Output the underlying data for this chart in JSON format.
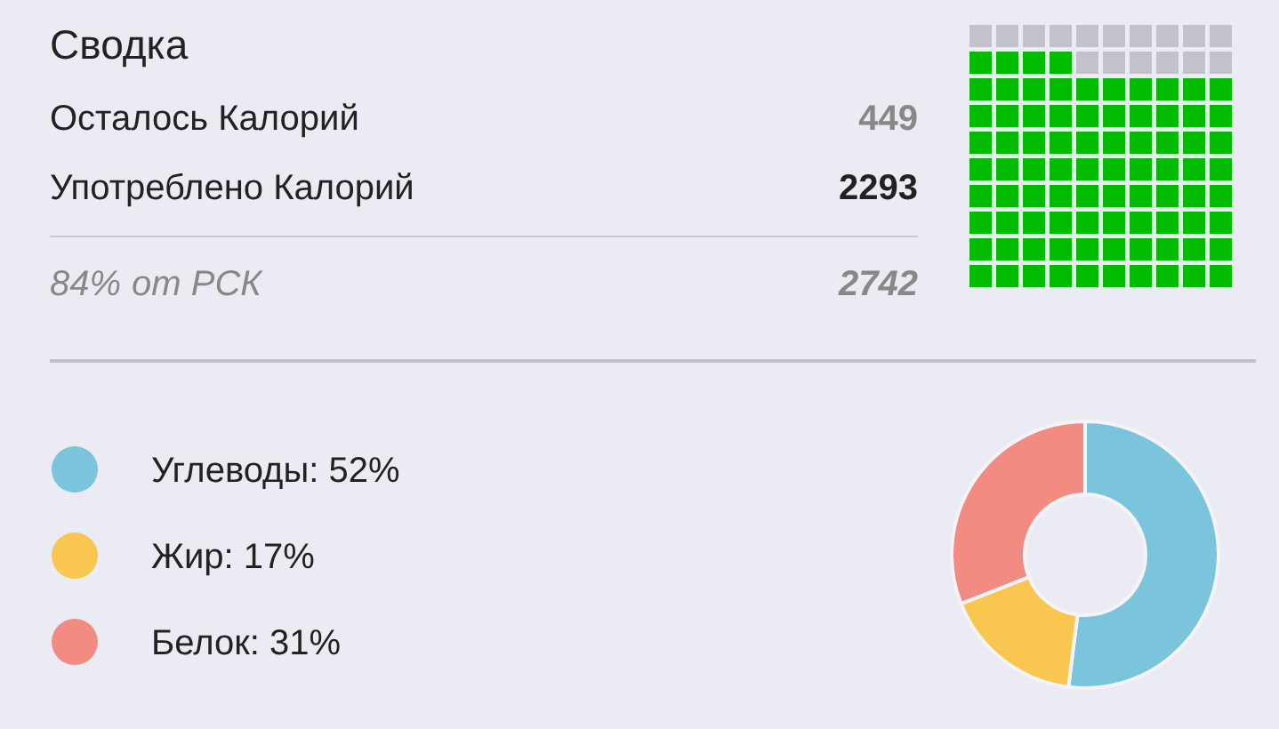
{
  "chart_data": [
    {
      "type": "other",
      "title": "Сводка",
      "annotations": [
        "Осталось Калорий",
        "449",
        "Употреблено Калорий",
        "2293",
        "от РСК",
        "2742"
      ],
      "values": [
        84
      ],
      "value_labels": [
        "84%"
      ],
      "color": "#00bb00"
    },
    {
      "type": "donut",
      "categories": [
        "Углеводы",
        "Жир",
        "Белок"
      ],
      "values": [
        52,
        17,
        31
      ],
      "value_labels": [
        "52%",
        "17%",
        "31%"
      ],
      "colors": [
        "#7ac4dc",
        "#f9c74f",
        "#f28b82"
      ],
      "legend": "left"
    }
  ]
}
